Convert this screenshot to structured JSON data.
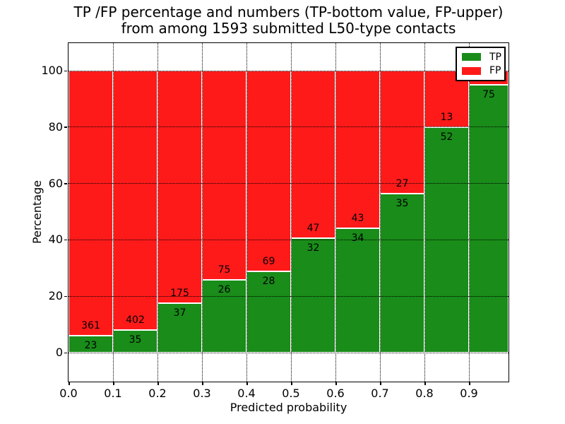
{
  "chart_data": {
    "type": "bar",
    "stacked": true,
    "title_line1": "TP /FP percentage and numbers (TP-bottom value, FP-upper)",
    "title_line2": "from among 1593 submitted L50-type contacts",
    "xlabel": "Predicted probability",
    "ylabel": "Percentage",
    "total_contacts": 1593,
    "bin_width": 0.1,
    "xlim": [
      0.0,
      0.99
    ],
    "categories": [
      "0.0",
      "0.1",
      "0.2",
      "0.3",
      "0.4",
      "0.5",
      "0.6",
      "0.7",
      "0.8",
      "0.9"
    ],
    "x_tick_labels": [
      "0.0",
      "0.1",
      "0.2",
      "0.3",
      "0.4",
      "0.5",
      "0.6",
      "0.7",
      "0.8",
      "0.9"
    ],
    "y_ticks": [
      0,
      20,
      40,
      60,
      80,
      100
    ],
    "y_tick_labels": [
      "0",
      "20",
      "40",
      "60",
      "80",
      "100"
    ],
    "grid": "dotted",
    "legend_position": "upper right",
    "series": [
      {
        "name": "TP",
        "color": "#198c19",
        "counts": [
          23,
          35,
          37,
          26,
          28,
          32,
          34,
          35,
          52,
          75
        ],
        "pcts": [
          6.0,
          8.0,
          17.5,
          25.7,
          28.9,
          40.5,
          44.2,
          56.5,
          80.0,
          94.9
        ]
      },
      {
        "name": "FP",
        "color": "#ff1a1a",
        "counts": [
          361,
          402,
          175,
          75,
          69,
          47,
          43,
          27,
          13,
          null
        ],
        "pcts": [
          94.0,
          92.0,
          82.5,
          74.3,
          71.1,
          59.5,
          55.8,
          43.5,
          20.0,
          5.1
        ]
      }
    ]
  },
  "legend": {
    "items": [
      {
        "label": "TP",
        "color": "#198c19"
      },
      {
        "label": "FP",
        "color": "#ff1a1a"
      }
    ]
  }
}
